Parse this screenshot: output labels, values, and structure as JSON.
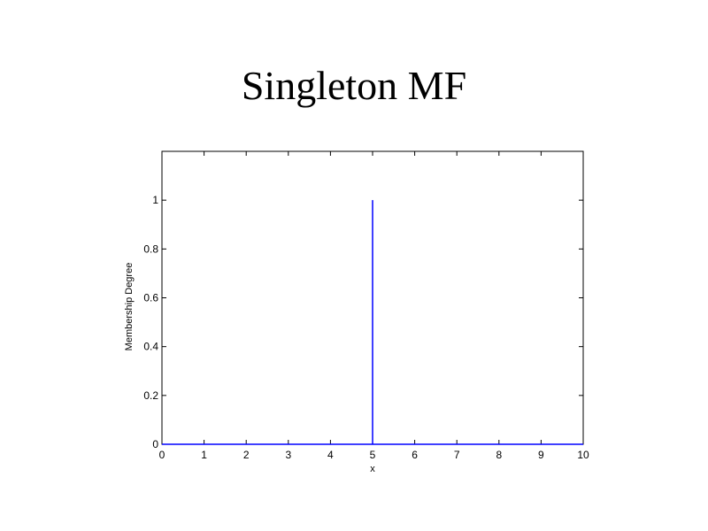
{
  "slide": {
    "title": "Singleton MF"
  },
  "chart_data": {
    "type": "line",
    "title": "",
    "xlabel": "x",
    "ylabel": "Membership Degree",
    "xlim": [
      0,
      10
    ],
    "ylim": [
      0,
      1.2
    ],
    "xticks": [
      0,
      1,
      2,
      3,
      4,
      5,
      6,
      7,
      8,
      9,
      10
    ],
    "xtick_labels": [
      "0",
      "1",
      "2",
      "3",
      "4",
      "5",
      "6",
      "7",
      "8",
      "9",
      "10"
    ],
    "yticks": [
      0,
      0.2,
      0.4,
      0.6,
      0.8,
      1
    ],
    "ytick_labels": [
      "0",
      "0.2",
      "0.4",
      "0.6",
      "0.8",
      "1"
    ],
    "grid": false,
    "legend": "none",
    "series": [
      {
        "color": "#0000ff",
        "x": [
          0,
          5,
          5,
          5,
          5,
          10
        ],
        "y": [
          0,
          0,
          1,
          0.5,
          0,
          0
        ]
      }
    ]
  }
}
